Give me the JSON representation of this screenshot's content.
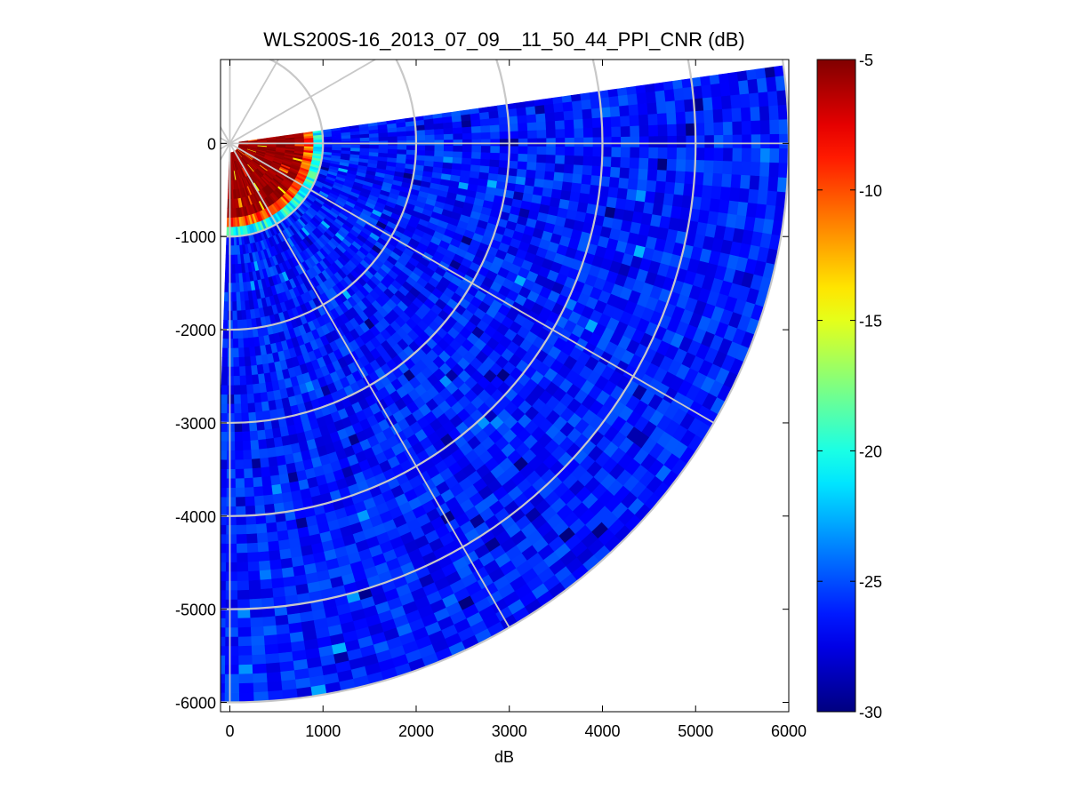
{
  "chart_data": {
    "type": "heatmap",
    "subtype": "polar-ppi",
    "title": "WLS200S-16_2013_07_09__11_50_44_PPI_CNR (dB)",
    "xlabel": "dB",
    "ylabel": "",
    "xlim": [
      -100,
      6000
    ],
    "ylim": [
      -6100,
      900
    ],
    "xticks": [
      0,
      1000,
      2000,
      3000,
      4000,
      5000,
      6000
    ],
    "xtick_labels": [
      "0",
      "1000",
      "2000",
      "3000",
      "4000",
      "5000",
      "6000"
    ],
    "yticks": [
      0,
      -1000,
      -2000,
      -3000,
      -4000,
      -5000,
      -6000
    ],
    "ytick_labels": [
      "0",
      "-1000",
      "-2000",
      "-3000",
      "-4000",
      "-5000",
      "-6000"
    ],
    "sector": {
      "azimuth_start_deg": -2,
      "azimuth_end_deg": 98,
      "azimuth_convention": "degrees clockwise from the -y axis toward +x",
      "range_min": 100,
      "range_max": 6000,
      "range_gate": 100,
      "azimuth_step_deg": 1.5
    },
    "field": {
      "description": "Carrier-to-noise ratio; saturated near-range core, blue noise floor beyond",
      "near_value": -5,
      "near_edge_range": 840,
      "noise_floor_mean": -26.3,
      "noise_floor_jitter": 1.7
    },
    "polar_grid": {
      "ring_radii": [
        1000,
        2000,
        3000,
        4000,
        5000,
        6000
      ],
      "spoke_angles_deg": [
        0,
        30,
        60,
        90,
        120,
        150
      ],
      "grid_on": true
    },
    "colorbar": {
      "colormap": "jet",
      "clim": [
        -30,
        -5
      ],
      "ticks": [
        -5,
        -10,
        -15,
        -20,
        -25,
        -30
      ],
      "tick_labels": [
        "-5",
        "-10",
        "-15",
        "-20",
        "-25",
        "-30"
      ],
      "location": "right"
    }
  },
  "colors": {
    "grid": "#c8c8c8",
    "axes": "#000000",
    "background": "#ffffff"
  }
}
